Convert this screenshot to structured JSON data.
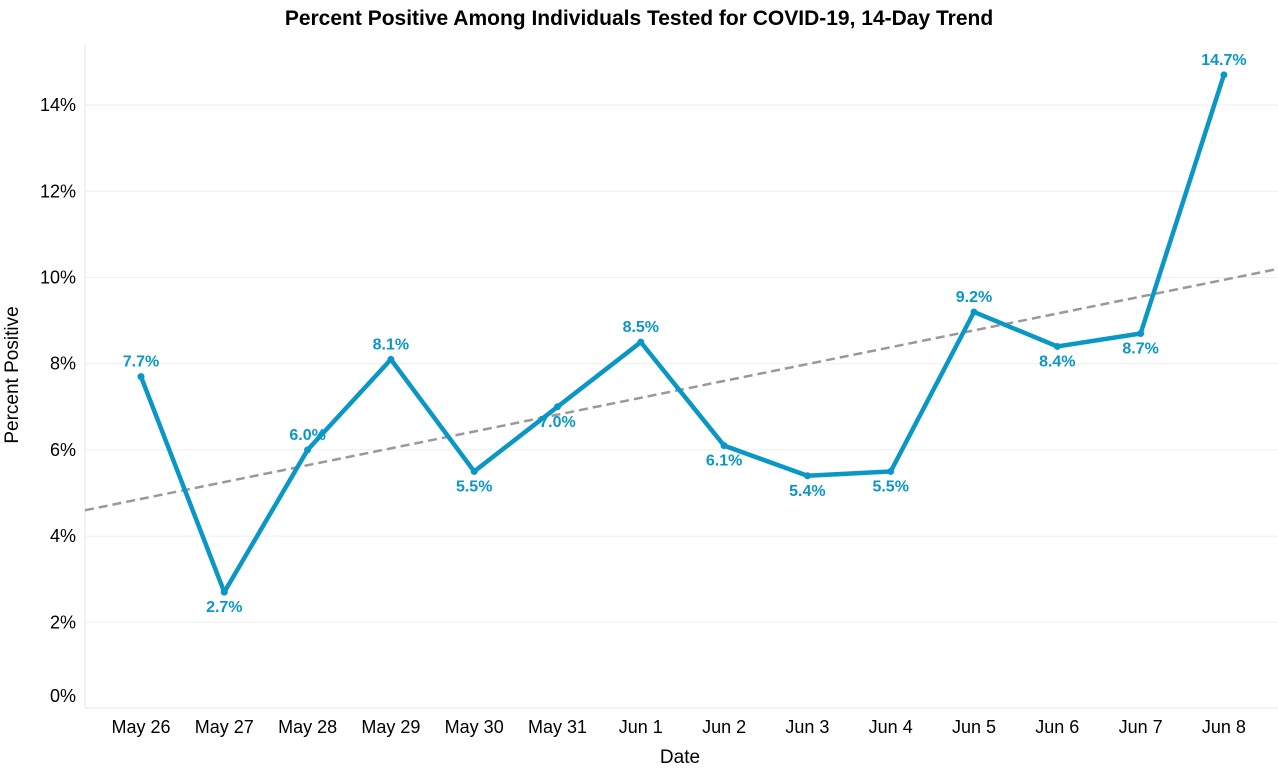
{
  "chart_data": {
    "type": "line",
    "title": "Percent Positive Among Individuals Tested for COVID-19, 14-Day Trend",
    "xlabel": "Date",
    "ylabel": "Percent Positive",
    "categories": [
      "May 26",
      "May 27",
      "May 28",
      "May 29",
      "May 30",
      "May 31",
      "Jun 1",
      "Jun 2",
      "Jun 3",
      "Jun 4",
      "Jun 5",
      "Jun 6",
      "Jun 7",
      "Jun 8"
    ],
    "series": [
      {
        "values": [
          7.7,
          2.7,
          6.0,
          8.1,
          5.5,
          7.0,
          8.5,
          6.1,
          5.4,
          5.5,
          9.2,
          8.4,
          8.7,
          14.7
        ],
        "labels": [
          "7.7%",
          "2.7%",
          "6.0%",
          "8.1%",
          "5.5%",
          "7.0%",
          "8.5%",
          "6.1%",
          "5.4%",
          "5.5%",
          "9.2%",
          "8.4%",
          "8.7%",
          "14.7%"
        ],
        "label_side": [
          "above",
          "below",
          "above",
          "above",
          "below",
          "below",
          "above",
          "below",
          "below",
          "below",
          "above",
          "below",
          "below",
          "above"
        ],
        "color": "#0B97C6"
      }
    ],
    "trendline": {
      "style": "dashed",
      "color": "#999999",
      "start_value": 4.6,
      "end_value": 10.2
    },
    "yticks": [
      0,
      2,
      4,
      6,
      8,
      10,
      12,
      14
    ],
    "ytick_labels": [
      "0%",
      "2%",
      "4%",
      "6%",
      "8%",
      "10%",
      "12%",
      "14%"
    ],
    "ylim": [
      0,
      15
    ],
    "grid": "horizontal",
    "legend": "none"
  }
}
